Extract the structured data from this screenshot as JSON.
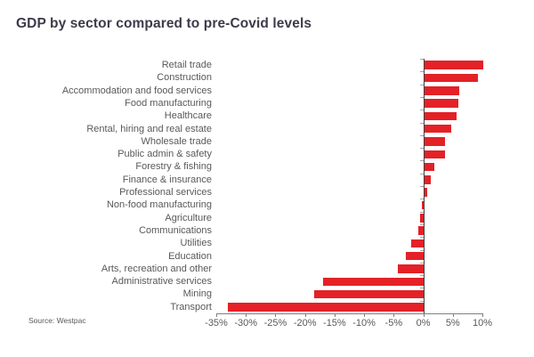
{
  "chart": {
    "title": "GDP by sector compared to pre-Covid levels",
    "source": "Source: Westpac"
  },
  "chart_data": {
    "type": "bar",
    "orientation": "horizontal",
    "title": "GDP by sector compared to pre-Covid levels",
    "categories": [
      "Retail trade",
      "Construction",
      "Accommodation and food services",
      "Food manufacturing",
      "Healthcare",
      "Rental, hiring and real estate",
      "Wholesale trade",
      "Public admin & safety",
      "Forestry & fishing",
      "Finance & insurance",
      "Professional services",
      "Non-food manufacturing",
      "Agriculture",
      "Communications",
      "Utilities",
      "Education",
      "Arts, recreation and other",
      "Administrative services",
      "Mining",
      "Transport"
    ],
    "values": [
      10,
      9,
      5.8,
      5.7,
      5.4,
      4.5,
      3.5,
      3.4,
      1.7,
      1,
      0.5,
      -0.2,
      -0.5,
      -0.8,
      -2,
      -3,
      -4.3,
      -17,
      -18.5,
      -33
    ],
    "unit": "%",
    "xlabel": "",
    "ylabel": "",
    "xlim": [
      -35,
      10
    ],
    "xtick_step": 5,
    "xtick_values": [
      -35,
      -30,
      -25,
      -20,
      -15,
      -10,
      -5,
      0,
      5,
      10
    ],
    "xtick_labels": [
      "-35%",
      "-30%",
      "-25%",
      "-20%",
      "-15%",
      "-10%",
      "-5%",
      "0%",
      "5%",
      "10%"
    ],
    "grid": false,
    "legend": false,
    "source": "Source: Westpac"
  },
  "colors": {
    "bar": "#e32127",
    "title": "#3b3b4b",
    "label": "#595959",
    "axis": "#808080",
    "zero_line": "#404040",
    "row_tick": "#a6a6a6",
    "background": "#ffffff"
  }
}
